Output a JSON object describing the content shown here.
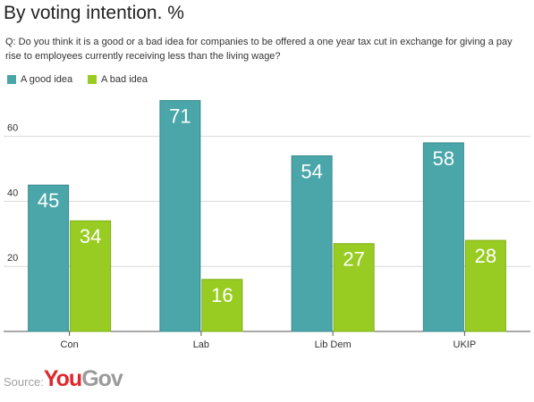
{
  "title": "By voting intention. %",
  "question": "Q: Do you think it is a good or a bad idea for companies to be offered a one year tax cut in exchange for giving a pay rise to employees currently receiving less than the living wage?",
  "source": {
    "label": "Source:",
    "brand_you": "You",
    "brand_gov": "Gov"
  },
  "chart_data": {
    "type": "bar",
    "categories": [
      "Con",
      "Lab",
      "Lib Dem",
      "UKIP"
    ],
    "series": [
      {
        "name": "A good idea",
        "color": "#4aa6a9",
        "values": [
          45,
          71,
          54,
          58
        ]
      },
      {
        "name": "A bad idea",
        "color": "#99cc22",
        "values": [
          34,
          16,
          27,
          28
        ]
      }
    ],
    "y_ticks": [
      20,
      40,
      60
    ],
    "ylim": [
      0,
      80
    ],
    "grid": true,
    "legend_position": "top-left",
    "data_labels": true
  }
}
